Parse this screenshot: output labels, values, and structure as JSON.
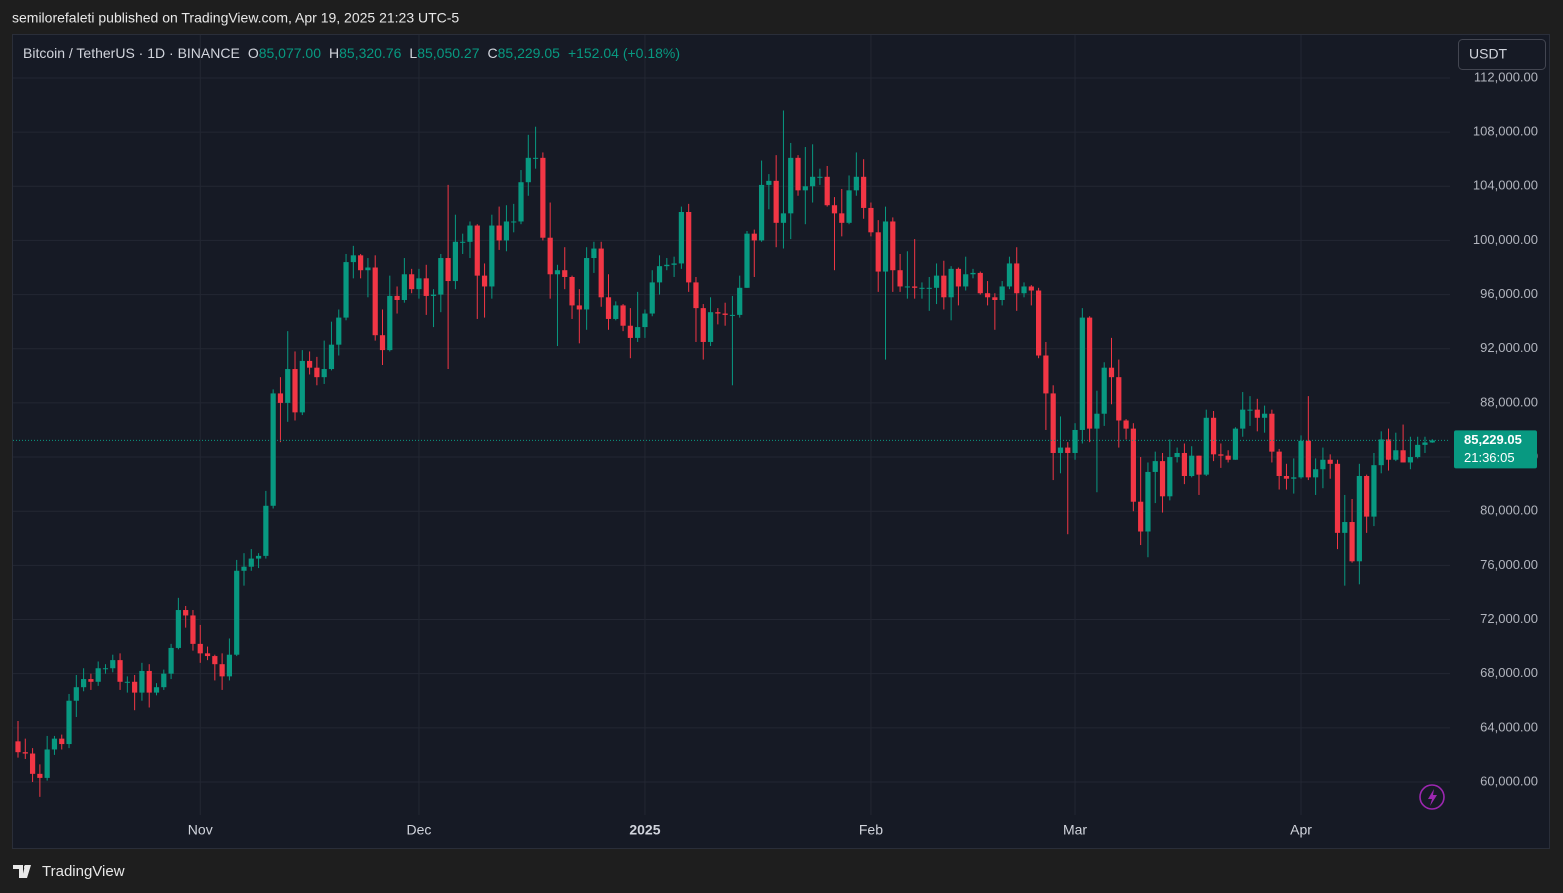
{
  "header": {
    "published": "semilorefaleti published on TradingView.com, Apr 19, 2025 21:23 UTC-5"
  },
  "currency_button": "USDT",
  "footer": {
    "brand": "TradingView"
  },
  "chart_data": {
    "type": "candlestick",
    "title": "Bitcoin / TetherUS · 1D · BINANCE",
    "legend": [
      {
        "key": "O",
        "text": "85,077.00"
      },
      {
        "key": "H",
        "text": "85,320.76"
      },
      {
        "key": "L",
        "text": "85,050.27"
      },
      {
        "key": "C",
        "text": "85,229.05"
      }
    ],
    "change": "+152.04 (+0.18%)",
    "last_price_label": "85,229.05",
    "countdown": "21:36:05",
    "up_color": "#089981",
    "down_color": "#f23645",
    "grid": true,
    "ylim": [
      57560,
      115100
    ],
    "yticks": [
      {
        "value": 60000,
        "label": "60,000.00"
      },
      {
        "value": 64000,
        "label": "64,000.00"
      },
      {
        "value": 68000,
        "label": "68,000.00"
      },
      {
        "value": 72000,
        "label": "72,000.00"
      },
      {
        "value": 76000,
        "label": "76,000.00"
      },
      {
        "value": 80000,
        "label": "80,000.00"
      },
      {
        "value": 84000,
        "label": "84,000.00"
      },
      {
        "value": 88000,
        "label": "88,000.00"
      },
      {
        "value": 92000,
        "label": "92,000.00"
      },
      {
        "value": 96000,
        "label": "96,000.00"
      },
      {
        "value": 100000,
        "label": "100,000.00"
      },
      {
        "value": 104000,
        "label": "104,000.00"
      },
      {
        "value": 108000,
        "label": "108,000.00"
      },
      {
        "value": 112000,
        "label": "112,000.00"
      }
    ],
    "categories": [
      null,
      null,
      null,
      null,
      null,
      null,
      null,
      null,
      null,
      null,
      null,
      null,
      null,
      null,
      null,
      null,
      null,
      null,
      null,
      null,
      null,
      null,
      null,
      null,
      null,
      "Nov",
      null,
      null,
      null,
      null,
      null,
      null,
      null,
      null,
      null,
      null,
      null,
      null,
      null,
      null,
      null,
      null,
      null,
      null,
      null,
      null,
      null,
      null,
      null,
      null,
      null,
      null,
      null,
      null,
      null,
      "Dec",
      null,
      null,
      null,
      null,
      null,
      null,
      null,
      null,
      null,
      null,
      null,
      null,
      null,
      null,
      null,
      null,
      null,
      null,
      null,
      null,
      null,
      null,
      null,
      null,
      null,
      null,
      null,
      null,
      null,
      null,
      "2025",
      null,
      null,
      null,
      null,
      null,
      null,
      null,
      null,
      null,
      null,
      null,
      null,
      null,
      null,
      null,
      null,
      null,
      null,
      null,
      null,
      null,
      null,
      null,
      null,
      null,
      null,
      null,
      null,
      null,
      null,
      "Feb",
      null,
      null,
      null,
      null,
      null,
      null,
      null,
      null,
      null,
      null,
      null,
      null,
      null,
      null,
      null,
      null,
      null,
      null,
      null,
      null,
      null,
      null,
      null,
      null,
      null,
      null,
      null,
      "Mar",
      null,
      null,
      null,
      null,
      null,
      null,
      null,
      null,
      null,
      null,
      null,
      null,
      null,
      null,
      null,
      null,
      null,
      null,
      null,
      null,
      null,
      null,
      null,
      null,
      null,
      null,
      null,
      null,
      null,
      null,
      "Apr",
      null,
      null,
      null,
      null,
      null,
      null,
      null,
      null,
      null,
      null,
      null,
      null,
      null,
      null,
      null,
      null,
      null,
      null
    ],
    "open": [
      63000,
      62200,
      62100,
      60600,
      60300,
      62400,
      63200,
      62800,
      66000,
      67000,
      67600,
      67400,
      68400,
      68400,
      69000,
      67400,
      67400,
      66600,
      68200,
      66600,
      67000,
      68000,
      69900,
      72700,
      72300,
      70200,
      69500,
      69300,
      68700,
      67800,
      69400,
      75600,
      75900,
      76500,
      76700,
      80400,
      88700,
      88000,
      90500,
      87300,
      91100,
      90600,
      89900,
      90500,
      92300,
      94300,
      98400,
      98900,
      97800,
      98000,
      93000,
      91900,
      95900,
      95600,
      97500,
      96400,
      97200,
      95900,
      96000,
      98700,
      97000,
      99900,
      99900,
      101100,
      97400,
      96600,
      101100,
      100000,
      101400,
      101400,
      104300,
      106100,
      106100,
      100200,
      97500,
      97800,
      97300,
      95200,
      94900,
      98700,
      99400,
      95800,
      94200,
      95200,
      93700,
      92800,
      93600,
      94600,
      96900,
      98100,
      98200,
      98300,
      102100,
      96900,
      95000,
      92500,
      94700,
      94600,
      94500,
      94500,
      96500,
      100500,
      100000,
      104100,
      104400,
      101300,
      102000,
      106100,
      103700,
      104000,
      104700,
      104700,
      102600,
      102000,
      101300,
      103700,
      104700,
      102400,
      100600,
      97700,
      101400,
      97800,
      96600,
      96600,
      96500,
      96500,
      96500,
      97400,
      95800,
      97900,
      96600,
      97500,
      97600,
      96100,
      95800,
      95600,
      96600,
      98300,
      96100,
      96600,
      96300,
      91500,
      88700,
      84300,
      84700,
      84300,
      86000,
      94300,
      86100,
      87200,
      90600,
      89900,
      86700,
      86100,
      80700,
      78500,
      82900,
      83700,
      81100,
      84000,
      84300,
      82600,
      84100,
      82700,
      86900,
      84200,
      84100,
      83800,
      86100,
      87500,
      87500,
      86900,
      87200,
      84400,
      82600,
      82400,
      82500,
      85200,
      82500,
      83100,
      83800,
      83500,
      78400,
      79200,
      76300,
      82600,
      79600,
      83400,
      85300,
      83800,
      84500,
      83600,
      84000,
      84900,
      85077
    ],
    "high": [
      64500,
      63200,
      62500,
      61300,
      63400,
      63400,
      63500,
      66500,
      67900,
      68400,
      68000,
      68900,
      68700,
      69400,
      69500,
      67800,
      67900,
      68800,
      68700,
      67300,
      68300,
      70200,
      73600,
      73000,
      72700,
      71600,
      70000,
      69400,
      69500,
      70600,
      76400,
      76900,
      77200,
      76900,
      81500,
      89000,
      89900,
      93300,
      91800,
      91900,
      91800,
      91400,
      92600,
      94000,
      94900,
      99000,
      99600,
      99000,
      98700,
      98900,
      94900,
      97400,
      96600,
      98700,
      97900,
      97900,
      98200,
      96400,
      99000,
      104100,
      101900,
      100500,
      101400,
      101200,
      98300,
      101900,
      102500,
      102600,
      102700,
      105200,
      107800,
      108400,
      106500,
      102800,
      98200,
      99500,
      97400,
      96400,
      99500,
      99900,
      99900,
      97500,
      95500,
      95300,
      95000,
      96200,
      94900,
      97800,
      98900,
      98700,
      98800,
      102500,
      102700,
      97300,
      95300,
      95800,
      95000,
      95400,
      95900,
      97400,
      100700,
      100800,
      105900,
      104900,
      106300,
      109600,
      107200,
      106300,
      106900,
      107100,
      105300,
      105500,
      103200,
      103800,
      104800,
      106500,
      106000,
      102800,
      101500,
      102500,
      101700,
      99000,
      99200,
      100100,
      96900,
      97300,
      98300,
      98500,
      98100,
      98000,
      98800,
      97900,
      97700,
      97000,
      96100,
      97000,
      98800,
      99500,
      96900,
      96700,
      96500,
      92500,
      89300,
      87000,
      85100,
      86500,
      95000,
      94400,
      88900,
      91000,
      92800,
      91200,
      86800,
      86500,
      84000,
      83600,
      84400,
      84300,
      85300,
      84700,
      85000,
      84800,
      84100,
      87500,
      87400,
      85000,
      84500,
      86200,
      88800,
      88500,
      88300,
      87800,
      87500,
      84600,
      83500,
      83900,
      85600,
      88500,
      83900,
      84700,
      84200,
      83800,
      81200,
      80900,
      83500,
      82700,
      84300,
      85900,
      86100,
      85800,
      86400,
      85500,
      85500,
      85500,
      85320.76
    ],
    "low": [
      61800,
      61700,
      60000,
      58900,
      60100,
      62000,
      62400,
      62500,
      64800,
      66700,
      66800,
      67100,
      68000,
      68100,
      66800,
      66600,
      65300,
      66000,
      65500,
      66400,
      66800,
      67600,
      69800,
      71400,
      69700,
      68800,
      69000,
      67500,
      66800,
      67500,
      69300,
      74500,
      75600,
      75800,
      76500,
      80200,
      85100,
      86600,
      86700,
      87100,
      90100,
      89300,
      89400,
      90400,
      91500,
      94100,
      97200,
      97200,
      95800,
      92600,
      90800,
      91800,
      94600,
      95400,
      96100,
      95700,
      94500,
      93600,
      94700,
      90500,
      96400,
      99000,
      98700,
      94200,
      94300,
      95700,
      99300,
      99200,
      100600,
      101200,
      103300,
      105300,
      100000,
      95700,
      92200,
      96400,
      94200,
      92400,
      93400,
      97600,
      95100,
      93400,
      94100,
      93300,
      91300,
      92500,
      92800,
      94400,
      96000,
      97800,
      97300,
      97900,
      96200,
      92500,
      91200,
      92200,
      93800,
      93700,
      89300,
      94300,
      96500,
      97300,
      99900,
      102300,
      99500,
      99400,
      100100,
      103300,
      101200,
      102800,
      104100,
      102500,
      97800,
      100300,
      101200,
      103300,
      101600,
      100300,
      96200,
      91200,
      96200,
      96200,
      95700,
      95700,
      95700,
      94800,
      95300,
      94900,
      94100,
      95200,
      96300,
      97200,
      96000,
      95200,
      93400,
      95200,
      96400,
      94800,
      95800,
      95200,
      91300,
      86000,
      82300,
      82800,
      78300,
      83800,
      85000,
      85100,
      81400,
      86300,
      87900,
      84700,
      85300,
      80000,
      77500,
      76600,
      80600,
      79900,
      80800,
      83600,
      82000,
      82500,
      81200,
      82600,
      83700,
      83200,
      83600,
      83800,
      85500,
      86300,
      85900,
      85800,
      83600,
      81600,
      81600,
      81300,
      82400,
      82300,
      81200,
      81700,
      82400,
      77200,
      74500,
      76200,
      74600,
      78400,
      78900,
      82800,
      83000,
      83700,
      83600,
      83100,
      83900,
      84300,
      85050.27
    ],
    "close": [
      62200,
      62100,
      60600,
      60300,
      62400,
      63200,
      62800,
      66000,
      67000,
      67600,
      67400,
      68400,
      68400,
      69000,
      67400,
      67400,
      66600,
      68200,
      66600,
      67000,
      68000,
      69900,
      72700,
      72300,
      70200,
      69500,
      69300,
      68700,
      67800,
      69400,
      75600,
      75900,
      76500,
      76700,
      80400,
      88700,
      88000,
      90500,
      87300,
      91100,
      90600,
      89900,
      90500,
      92300,
      94300,
      98400,
      98900,
      97800,
      98000,
      93000,
      91900,
      95900,
      95600,
      97500,
      96400,
      97200,
      95900,
      96000,
      98700,
      97000,
      99900,
      99900,
      101100,
      97400,
      96600,
      101100,
      100000,
      101400,
      101400,
      104300,
      106100,
      106100,
      100200,
      97500,
      97800,
      97300,
      95200,
      94900,
      98700,
      99400,
      95800,
      94200,
      95200,
      93700,
      92800,
      93600,
      94600,
      96900,
      98100,
      98200,
      98300,
      102100,
      96900,
      95000,
      92500,
      94700,
      94600,
      94500,
      94500,
      96500,
      100500,
      100000,
      104100,
      104400,
      101300,
      102000,
      106100,
      103700,
      104000,
      104700,
      104700,
      102600,
      102000,
      101300,
      103700,
      104700,
      102400,
      100600,
      97700,
      101400,
      97800,
      96600,
      96600,
      96500,
      96500,
      96500,
      97400,
      95800,
      97900,
      96600,
      97500,
      97600,
      96100,
      95800,
      95600,
      96600,
      98300,
      96100,
      96600,
      96300,
      91500,
      88700,
      84300,
      84700,
      84300,
      86000,
      94300,
      86100,
      87200,
      90600,
      89900,
      86700,
      86100,
      80700,
      78500,
      82900,
      83700,
      81100,
      84000,
      84300,
      82600,
      84100,
      82700,
      86900,
      84200,
      84100,
      83800,
      86100,
      87500,
      87500,
      86900,
      87200,
      84400,
      82600,
      82400,
      82500,
      85200,
      82500,
      83100,
      83800,
      83500,
      78400,
      79200,
      76300,
      82600,
      79600,
      83400,
      85300,
      83800,
      84500,
      83600,
      84000,
      84900,
      85077,
      85229.05
    ]
  }
}
